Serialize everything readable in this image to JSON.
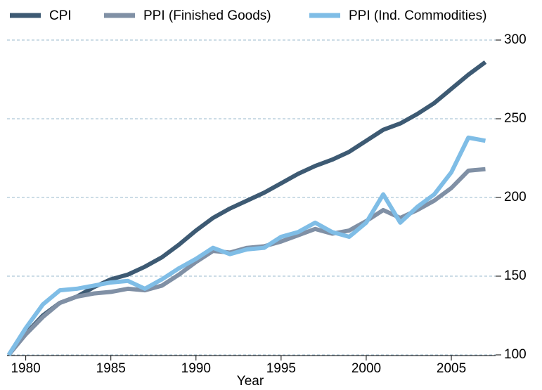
{
  "chart_data": {
    "type": "line",
    "x_label": "Year",
    "x": [
      1979,
      1980,
      1981,
      1982,
      1983,
      1984,
      1985,
      1986,
      1987,
      1988,
      1989,
      1990,
      1991,
      1992,
      1993,
      1994,
      1995,
      1996,
      1997,
      1998,
      1999,
      2000,
      2001,
      2002,
      2003,
      2004,
      2005,
      2006,
      2007
    ],
    "series": [
      {
        "name": "CPI",
        "color": "#3d5a73",
        "values": [
          100,
          113.5,
          125,
          133,
          137,
          143,
          148,
          151,
          156,
          162,
          170,
          179,
          187,
          193,
          198,
          203,
          209,
          215,
          220,
          224,
          229,
          236,
          243,
          247,
          253,
          260,
          269,
          278,
          286
        ]
      },
      {
        "name": "PPI (Finished Goods)",
        "color": "#8090a5",
        "values": [
          100,
          113,
          124,
          133,
          137,
          139,
          140,
          142,
          141,
          144,
          151,
          159,
          166,
          165,
          168,
          169,
          172,
          176,
          180,
          177,
          179,
          185,
          192,
          187,
          192,
          198,
          206,
          217,
          218
        ]
      },
      {
        "name": "PPI (Ind. Commodities)",
        "color": "#7fbde6",
        "values": [
          100,
          117,
          132,
          141,
          142,
          144,
          146,
          147,
          142,
          148,
          155,
          161,
          168,
          164,
          167,
          168,
          175,
          178,
          184,
          178,
          175,
          184,
          202,
          184,
          194,
          202,
          216,
          238,
          236
        ]
      }
    ],
    "xlim": [
      1978.9,
      2007.6
    ],
    "xticks": [
      1980,
      1985,
      1990,
      1995,
      2000,
      2005
    ],
    "ylim": [
      100,
      300
    ],
    "yticks": [
      100,
      150,
      200,
      250,
      300
    ],
    "grid": true,
    "legend": "top"
  }
}
